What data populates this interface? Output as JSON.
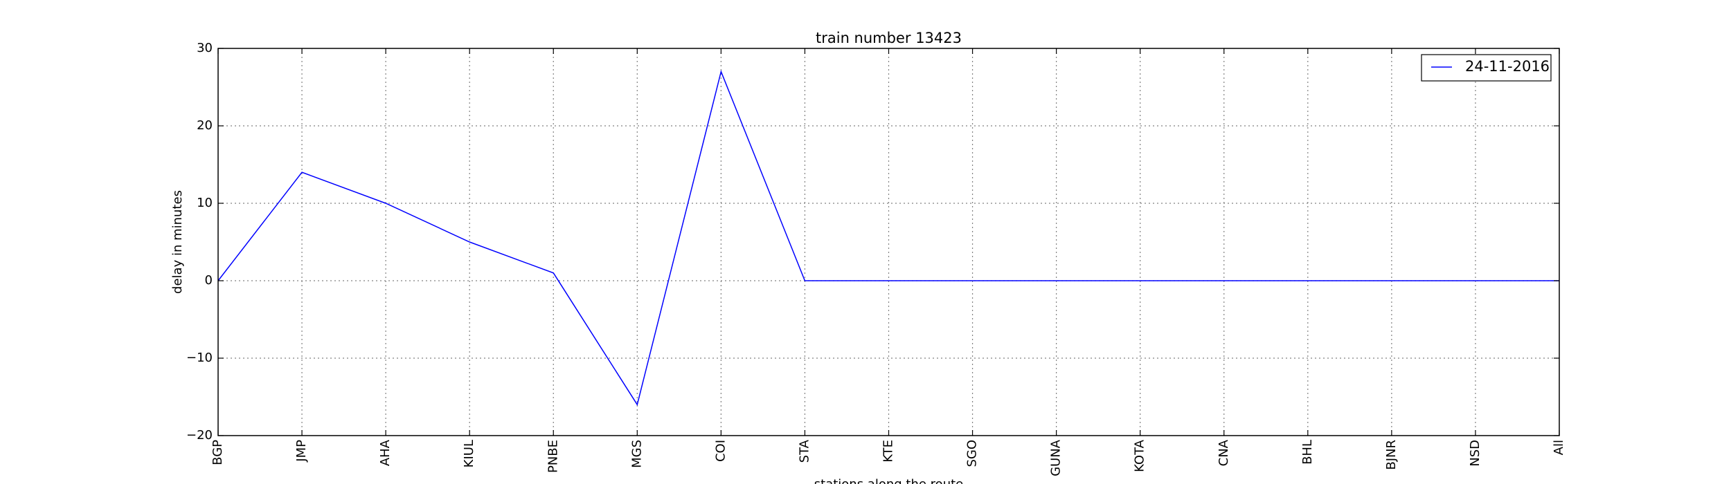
{
  "chart_data": {
    "type": "line",
    "title": "train number 13423",
    "xlabel": "stations along the route",
    "ylabel": "delay in minutes",
    "categories": [
      "BGP",
      "JMP",
      "AHA",
      "KIUL",
      "PNBE",
      "MGS",
      "COI",
      "STA",
      "KTE",
      "SGO",
      "GUNA",
      "KOTA",
      "CNA",
      "BHL",
      "BJNR",
      "NSD",
      "All"
    ],
    "series": [
      {
        "name": "24-11-2016",
        "color": "#0000ff",
        "values": [
          0,
          14,
          10,
          5,
          1,
          -16,
          27,
          0,
          0,
          0,
          0,
          0,
          0,
          0,
          0,
          0,
          0
        ]
      }
    ],
    "ylim": [
      -20,
      30
    ],
    "yticks": [
      -20,
      -10,
      0,
      10,
      20,
      30
    ],
    "ytick_labels": [
      "−20",
      "−10",
      "0",
      "10",
      "20",
      "30"
    ],
    "grid": true,
    "legend_position": "top-right"
  }
}
